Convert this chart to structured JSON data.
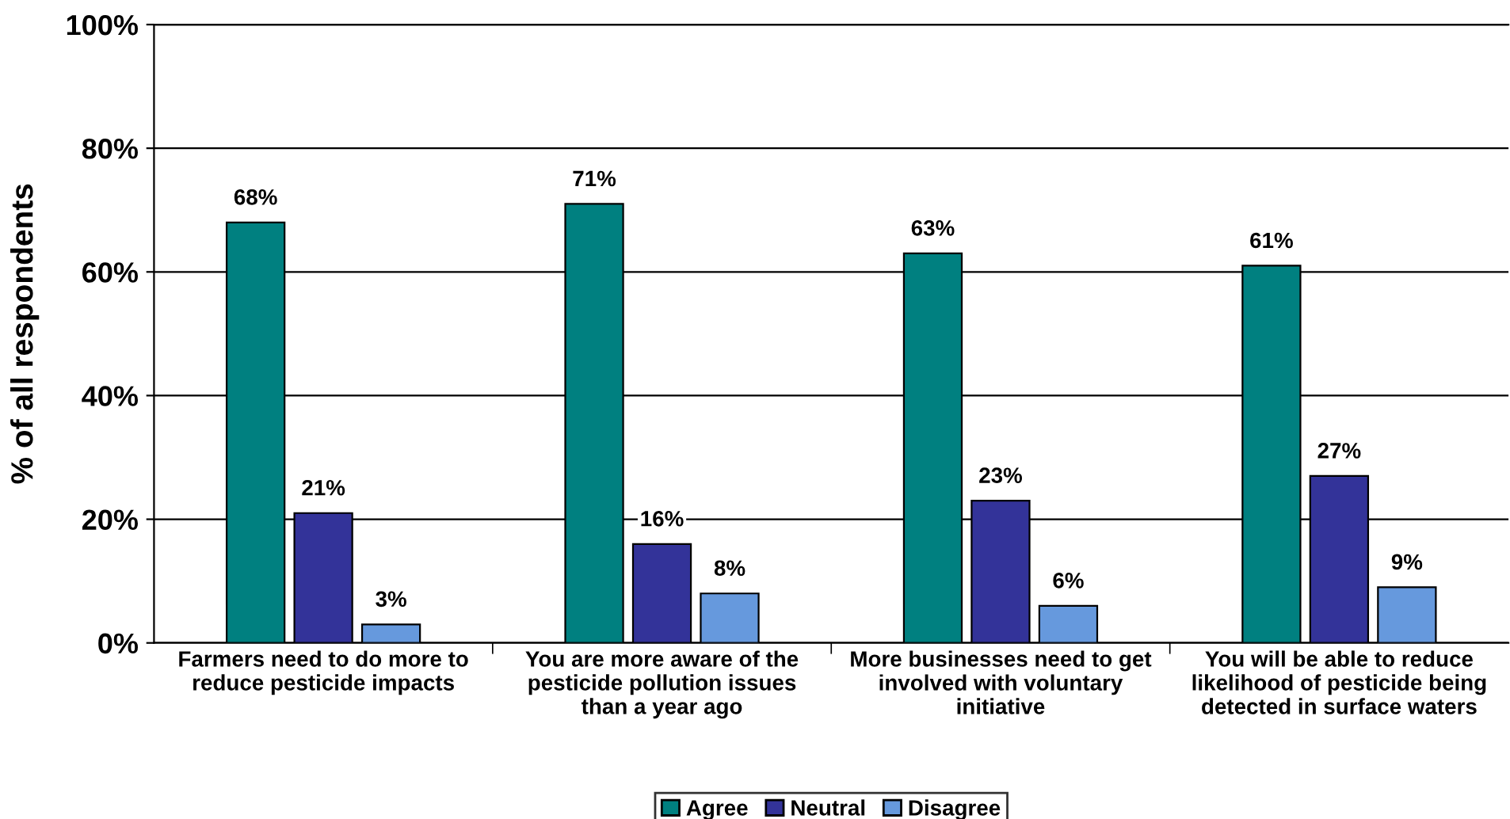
{
  "chart_data": {
    "type": "bar",
    "ylabel": "% of all respondents",
    "categories": [
      "Farmers need to do more to\nreduce pesticide impacts",
      "You are more aware of the\npesticide pollution issues\nthan a year ago",
      "More businesses need to get\ninvolved with voluntary\ninitiative",
      "You will be able to reduce\nlikelihood of pesticide being\ndetected in surface waters"
    ],
    "series": [
      {
        "name": "Agree",
        "color": "#008080",
        "values": [
          68,
          71,
          63,
          61
        ]
      },
      {
        "name": "Neutral",
        "color": "#333399",
        "values": [
          21,
          16,
          23,
          27
        ]
      },
      {
        "name": "Disagree",
        "color": "#6699dd",
        "values": [
          3,
          8,
          6,
          9
        ]
      }
    ],
    "value_labels": [
      [
        "68%",
        "71%",
        "63%",
        "61%"
      ],
      [
        "21%",
        "16%",
        "23%",
        "27%"
      ],
      [
        "3%",
        "8%",
        "6%",
        "9%"
      ]
    ],
    "ylim": [
      0,
      100
    ],
    "yticks": [
      {
        "value": 0,
        "label": "0%"
      },
      {
        "value": 20,
        "label": "20%"
      },
      {
        "value": 40,
        "label": "40%"
      },
      {
        "value": 60,
        "label": "60%"
      },
      {
        "value": 80,
        "label": "80%"
      },
      {
        "value": 100,
        "label": "100%"
      }
    ],
    "grid": "y",
    "legend": "bottom"
  }
}
